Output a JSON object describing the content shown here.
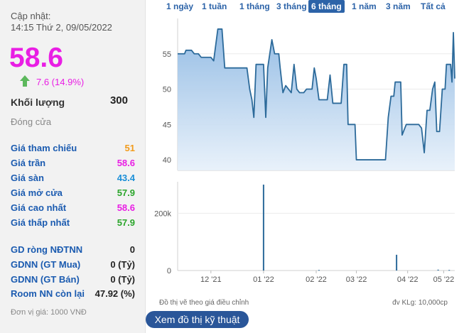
{
  "header": {
    "updated_label": "Cập nhật:",
    "updated_time": "14:15 Thứ 2, 09/05/2022"
  },
  "price": {
    "value": "58.6",
    "change": "7.6 (14.9%)",
    "direction": "up",
    "color": "#e91ee4"
  },
  "volume": {
    "label": "Khối lượng",
    "value": "300"
  },
  "close_label": "Đóng cửa",
  "prices": [
    {
      "label": "Giá tham chiếu",
      "value": "51",
      "color": "#f29b1b"
    },
    {
      "label": "Giá trần",
      "value": "58.6",
      "color": "#e91ee4"
    },
    {
      "label": "Giá sàn",
      "value": "43.4",
      "color": "#1b8fd8"
    },
    {
      "label": "Giá mở cửa",
      "value": "57.9",
      "color": "#2aa52a"
    },
    {
      "label": "Giá cao nhất",
      "value": "58.6",
      "color": "#e91ee4"
    },
    {
      "label": "Giá thấp nhất",
      "value": "57.9",
      "color": "#2aa52a"
    }
  ],
  "foreign": [
    {
      "label": "GD ròng NĐTNN",
      "value": "0"
    },
    {
      "label": "GDNN (GT Mua)",
      "value": "0 (Tỷ)"
    },
    {
      "label": "GDNN (GT Bán)",
      "value": "0 (Tỷ)"
    },
    {
      "label": "Room NN còn lại",
      "value": "47.92 (%)"
    }
  ],
  "unit_note": "Đơn vị giá: 1000 VNĐ",
  "tabs": [
    {
      "label": "1 ngày",
      "active": false
    },
    {
      "label": "1 tuần",
      "active": false
    },
    {
      "label": "1 tháng",
      "active": false
    },
    {
      "label": "3 tháng",
      "active": false
    },
    {
      "label": "6 tháng",
      "active": true
    },
    {
      "label": "1 năm",
      "active": false
    },
    {
      "label": "3 năm",
      "active": false
    },
    {
      "label": "Tất cả",
      "active": false
    }
  ],
  "chart_data": [
    {
      "type": "area",
      "title": "",
      "ylim": [
        38.5,
        60
      ],
      "yticks": [
        "55",
        "50",
        "45",
        "40"
      ],
      "ytick_values": [
        55,
        50,
        45,
        40
      ],
      "xrange": [
        0,
        100
      ],
      "points": [
        [
          0,
          55
        ],
        [
          2.5,
          55
        ],
        [
          3,
          55.5
        ],
        [
          5,
          55.5
        ],
        [
          6,
          55
        ],
        [
          7.5,
          55
        ],
        [
          8.5,
          54.5
        ],
        [
          12,
          54.5
        ],
        [
          13,
          54
        ],
        [
          14.5,
          58.5
        ],
        [
          16,
          58.5
        ],
        [
          17,
          53
        ],
        [
          25,
          53
        ],
        [
          26,
          50
        ],
        [
          26.8,
          48.5
        ],
        [
          27.5,
          46
        ],
        [
          28.3,
          53.5
        ],
        [
          31,
          53.5
        ],
        [
          31.8,
          46
        ],
        [
          32.5,
          53
        ],
        [
          34,
          57
        ],
        [
          35,
          55
        ],
        [
          36.5,
          55
        ],
        [
          37,
          53
        ],
        [
          38,
          49.5
        ],
        [
          39,
          50.5
        ],
        [
          40,
          50
        ],
        [
          41,
          49.5
        ],
        [
          42,
          53.5
        ],
        [
          43,
          50
        ],
        [
          44,
          49.5
        ],
        [
          45.5,
          49.5
        ],
        [
          46.5,
          50
        ],
        [
          48.5,
          50
        ],
        [
          49.3,
          53
        ],
        [
          50,
          51.5
        ],
        [
          51,
          48.5
        ],
        [
          54,
          48.5
        ],
        [
          55,
          52
        ],
        [
          56,
          48
        ],
        [
          59,
          48
        ],
        [
          60,
          53.5
        ],
        [
          61,
          53.5
        ],
        [
          61.5,
          45
        ],
        [
          64,
          45
        ],
        [
          64.5,
          40
        ],
        [
          75,
          40
        ],
        [
          76,
          46
        ],
        [
          77,
          49
        ],
        [
          78,
          49
        ],
        [
          78.5,
          51
        ],
        [
          80.5,
          51
        ],
        [
          81,
          43.5
        ],
        [
          82.5,
          45
        ],
        [
          87,
          45
        ],
        [
          88,
          44.5
        ],
        [
          89,
          41
        ],
        [
          90,
          47
        ],
        [
          91,
          47
        ],
        [
          92,
          50
        ],
        [
          92.8,
          51
        ],
        [
          93.5,
          44
        ],
        [
          94.5,
          44
        ],
        [
          95.5,
          50
        ],
        [
          96.5,
          50
        ],
        [
          97,
          53.5
        ],
        [
          98.5,
          53.5
        ],
        [
          99,
          51
        ],
        [
          99.5,
          58
        ],
        [
          100,
          51.5
        ]
      ],
      "color": "#2c6a9a"
    },
    {
      "type": "bar",
      "title": "",
      "ylabel": "",
      "yticks": [
        "200k",
        "0"
      ],
      "ytick_values": [
        200000,
        0
      ],
      "ylim": [
        0,
        310000
      ],
      "x_tick_labels": [
        "12 '21",
        "01 '22",
        "02 '22",
        "03 '22",
        "04 '22",
        "05 '22"
      ],
      "x_tick_positions": [
        12,
        31,
        50,
        64.5,
        83,
        96
      ],
      "bars": [
        {
          "x": 31,
          "value": 300000
        },
        {
          "x": 51,
          "value": 2000
        },
        {
          "x": 79,
          "value": 55000
        },
        {
          "x": 94,
          "value": 3000
        },
        {
          "x": 98,
          "value": 2000
        }
      ],
      "color": "#2c6a9a"
    }
  ],
  "footer": {
    "left": "Đồ thị vẽ theo giá điều chỉnh",
    "right": "đv KLg: 10,000cp"
  },
  "button_label": "Xem đồ thị kỹ thuật"
}
